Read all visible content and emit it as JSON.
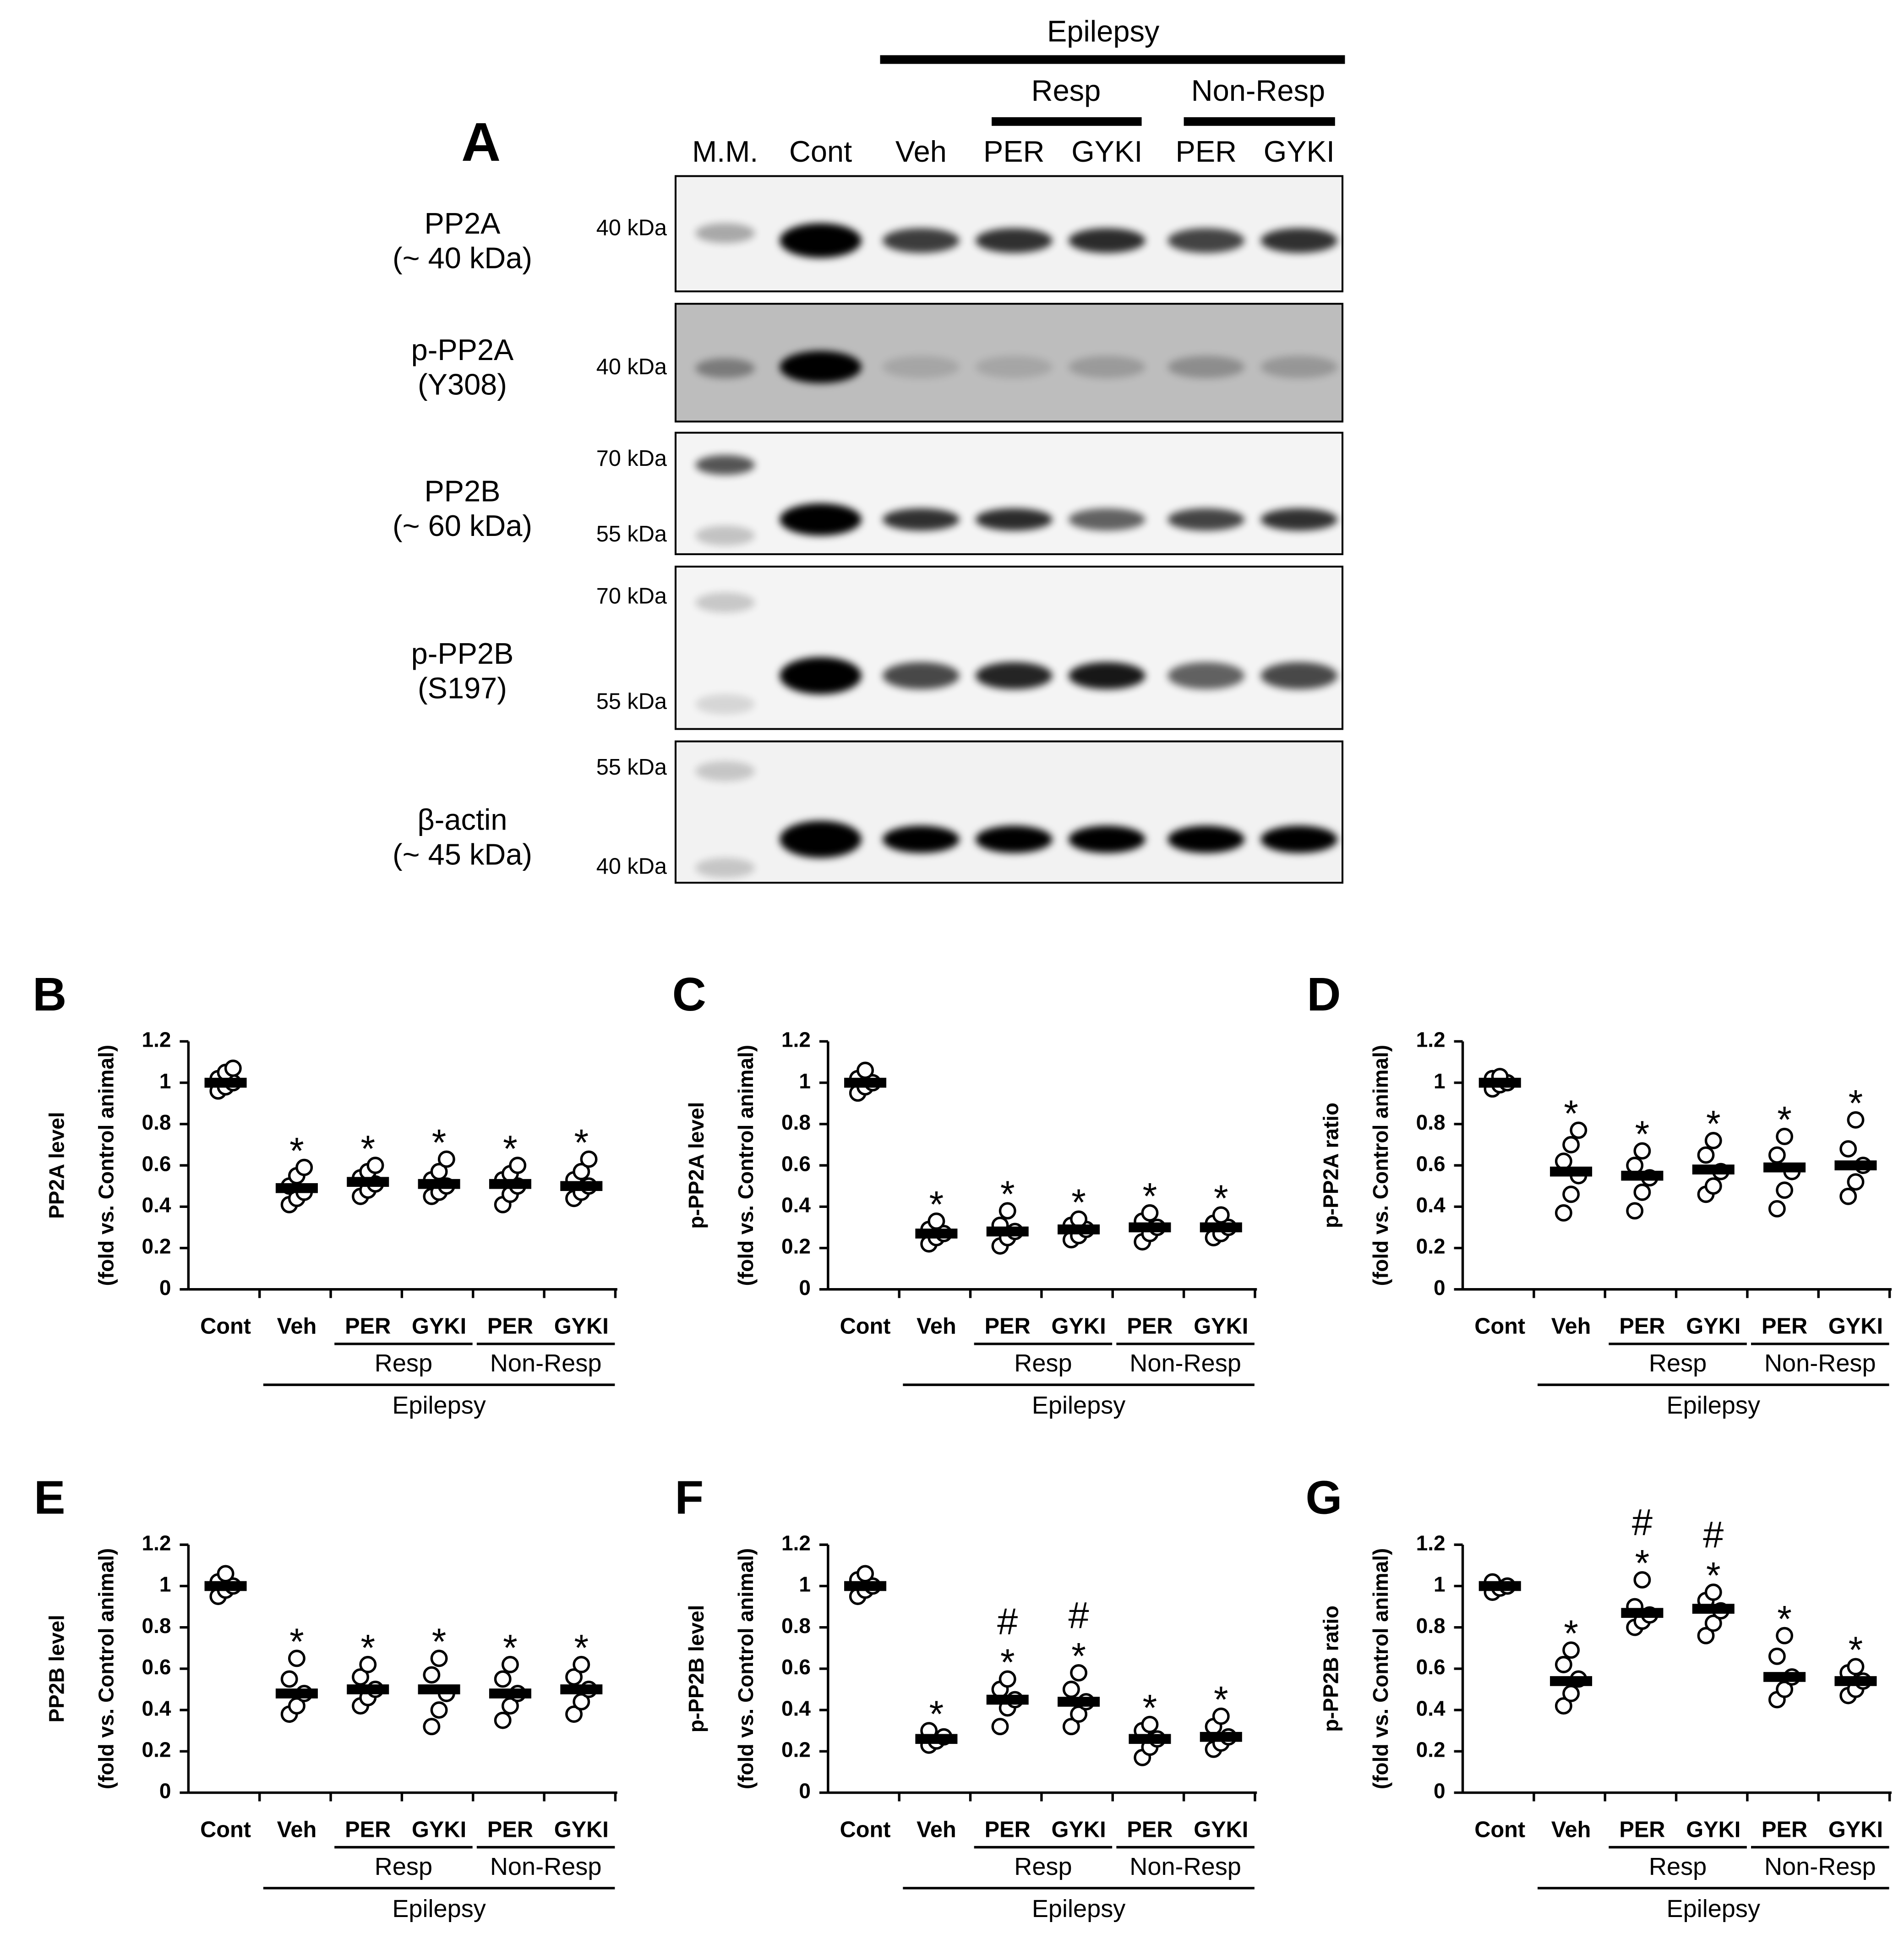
{
  "blot": {
    "panel": "A",
    "group": "Epilepsy",
    "subgroups": [
      "Resp",
      "Non-Resp"
    ],
    "lanes": [
      "M.M.",
      "Cont",
      "Veh",
      "PER",
      "GYKI",
      "PER",
      "GYKI"
    ],
    "rows": [
      {
        "label": [
          "PP2A",
          "(~ 40 kDa)"
        ],
        "markers": [
          "40 kDa"
        ]
      },
      {
        "label": [
          "p-PP2A",
          "(Y308)"
        ],
        "markers": [
          "40 kDa"
        ]
      },
      {
        "label": [
          "PP2B",
          "(~ 60 kDa)"
        ],
        "markers": [
          "70 kDa",
          "55 kDa"
        ]
      },
      {
        "label": [
          "p-PP2B",
          "(S197)"
        ],
        "markers": [
          "70 kDa",
          "55 kDa"
        ]
      },
      {
        "label": [
          "β-actin",
          "(~ 45 kDa)"
        ],
        "markers": [
          "55 kDa",
          "40 kDa"
        ]
      }
    ]
  },
  "chart_data": [
    {
      "type": "dot",
      "panel": "B",
      "ylabel": [
        "PP2A level",
        "(fold vs. Control animal)"
      ],
      "categories": [
        "Cont",
        "Veh",
        "PER",
        "GYKI",
        "PER",
        "GYKI"
      ],
      "subgroups": [
        "Resp",
        "Non-Resp"
      ],
      "group": "Epilepsy",
      "values": [
        1,
        0.49,
        0.52,
        0.51,
        0.51,
        0.5
      ],
      "points": [
        [
          0.96,
          0.98,
          1.0,
          1.02,
          1.05,
          1.07
        ],
        [
          0.41,
          0.44,
          0.47,
          0.5,
          0.55,
          0.59
        ],
        [
          0.45,
          0.48,
          0.51,
          0.54,
          0.57,
          0.6
        ],
        [
          0.45,
          0.47,
          0.5,
          0.53,
          0.57,
          0.63
        ],
        [
          0.41,
          0.46,
          0.5,
          0.53,
          0.56,
          0.6
        ],
        [
          0.44,
          0.47,
          0.5,
          0.53,
          0.57,
          0.63
        ]
      ],
      "annotations": [
        null,
        [
          "*"
        ],
        [
          "*"
        ],
        [
          "*"
        ],
        [
          "*"
        ],
        [
          "*"
        ]
      ],
      "ylim": [
        0,
        1.2
      ],
      "yticks": [
        0,
        0.2,
        0.4,
        0.6,
        0.8,
        1,
        1.2
      ]
    },
    {
      "type": "dot",
      "panel": "C",
      "ylabel": [
        "p-PP2A level",
        "(fold vs. Control animal)"
      ],
      "categories": [
        "Cont",
        "Veh",
        "PER",
        "GYKI",
        "PER",
        "GYKI"
      ],
      "subgroups": [
        "Resp",
        "Non-Resp"
      ],
      "group": "Epilepsy",
      "values": [
        1,
        0.27,
        0.28,
        0.29,
        0.3,
        0.3
      ],
      "points": [
        [
          0.95,
          0.98,
          1.0,
          1.02,
          1.06
        ],
        [
          0.22,
          0.25,
          0.27,
          0.29,
          0.33
        ],
        [
          0.21,
          0.25,
          0.28,
          0.31,
          0.38
        ],
        [
          0.24,
          0.26,
          0.29,
          0.31,
          0.34
        ],
        [
          0.23,
          0.27,
          0.3,
          0.33,
          0.37
        ],
        [
          0.25,
          0.27,
          0.3,
          0.32,
          0.36
        ]
      ],
      "annotations": [
        null,
        [
          "*"
        ],
        [
          "*"
        ],
        [
          "*"
        ],
        [
          "*"
        ],
        [
          "*"
        ]
      ],
      "ylim": [
        0,
        1.2
      ],
      "yticks": [
        0,
        0.2,
        0.4,
        0.6,
        0.8,
        1,
        1.2
      ]
    },
    {
      "type": "dot",
      "panel": "D",
      "ylabel": [
        "p-PP2A ratio",
        "(fold vs. Control animal)"
      ],
      "categories": [
        "Cont",
        "Veh",
        "PER",
        "GYKI",
        "PER",
        "GYKI"
      ],
      "subgroups": [
        "Resp",
        "Non-Resp"
      ],
      "group": "Epilepsy",
      "values": [
        1,
        0.57,
        0.55,
        0.58,
        0.59,
        0.6
      ],
      "points": [
        [
          0.97,
          0.99,
          1.0,
          1.02,
          1.03
        ],
        [
          0.37,
          0.46,
          0.55,
          0.62,
          0.7,
          0.77
        ],
        [
          0.38,
          0.47,
          0.54,
          0.6,
          0.67
        ],
        [
          0.46,
          0.5,
          0.57,
          0.65,
          0.72
        ],
        [
          0.39,
          0.48,
          0.57,
          0.65,
          0.74
        ],
        [
          0.45,
          0.52,
          0.6,
          0.68,
          0.82
        ]
      ],
      "annotations": [
        null,
        [
          "*"
        ],
        [
          "*"
        ],
        [
          "*"
        ],
        [
          "*"
        ],
        [
          "*"
        ]
      ],
      "ylim": [
        0,
        1.2
      ],
      "yticks": [
        0,
        0.2,
        0.4,
        0.6,
        0.8,
        1,
        1.2
      ]
    },
    {
      "type": "dot",
      "panel": "E",
      "ylabel": [
        "PP2B level",
        "(fold vs. Control animal)"
      ],
      "categories": [
        "Cont",
        "Veh",
        "PER",
        "GYKI",
        "PER",
        "GYKI"
      ],
      "subgroups": [
        "Resp",
        "Non-Resp"
      ],
      "group": "Epilepsy",
      "values": [
        1,
        0.48,
        0.5,
        0.5,
        0.48,
        0.5
      ],
      "points": [
        [
          0.95,
          0.98,
          1.0,
          1.02,
          1.06
        ],
        [
          0.38,
          0.42,
          0.48,
          0.55,
          0.65
        ],
        [
          0.42,
          0.46,
          0.5,
          0.56,
          0.62
        ],
        [
          0.32,
          0.4,
          0.48,
          0.57,
          0.65
        ],
        [
          0.35,
          0.42,
          0.48,
          0.55,
          0.62
        ],
        [
          0.38,
          0.44,
          0.5,
          0.56,
          0.62
        ]
      ],
      "annotations": [
        null,
        [
          "*"
        ],
        [
          "*"
        ],
        [
          "*"
        ],
        [
          "*"
        ],
        [
          "*"
        ]
      ],
      "ylim": [
        0,
        1.2
      ],
      "yticks": [
        0,
        0.2,
        0.4,
        0.6,
        0.8,
        1,
        1.2
      ]
    },
    {
      "type": "dot",
      "panel": "F",
      "ylabel": [
        "p-PP2B level",
        "(fold vs. Control animal)"
      ],
      "categories": [
        "Cont",
        "Veh",
        "PER",
        "GYKI",
        "PER",
        "GYKI"
      ],
      "subgroups": [
        "Resp",
        "Non-Resp"
      ],
      "group": "Epilepsy",
      "values": [
        1,
        0.26,
        0.45,
        0.44,
        0.26,
        0.27
      ],
      "points": [
        [
          0.95,
          0.98,
          1.0,
          1.03,
          1.06
        ],
        [
          0.23,
          0.25,
          0.27,
          0.3
        ],
        [
          0.32,
          0.41,
          0.45,
          0.5,
          0.55
        ],
        [
          0.32,
          0.38,
          0.44,
          0.5,
          0.58
        ],
        [
          0.17,
          0.22,
          0.26,
          0.3,
          0.33
        ],
        [
          0.21,
          0.24,
          0.27,
          0.32,
          0.37
        ]
      ],
      "annotations": [
        null,
        [
          "*"
        ],
        [
          "#",
          "*"
        ],
        [
          "#",
          "*"
        ],
        [
          "*"
        ],
        [
          "*"
        ]
      ],
      "ylim": [
        0,
        1.2
      ],
      "yticks": [
        0,
        0.2,
        0.4,
        0.6,
        0.8,
        1,
        1.2
      ]
    },
    {
      "type": "dot",
      "panel": "G",
      "ylabel": [
        "p-PP2B ratio",
        "(fold vs. Control animal)"
      ],
      "categories": [
        "Cont",
        "Veh",
        "PER",
        "GYKI",
        "PER",
        "GYKI"
      ],
      "subgroups": [
        "Resp",
        "Non-Resp"
      ],
      "group": "Epilepsy",
      "values": [
        1,
        0.54,
        0.87,
        0.89,
        0.56,
        0.54
      ],
      "points": [
        [
          0.97,
          0.99,
          1.0,
          1.02
        ],
        [
          0.42,
          0.48,
          0.55,
          0.62,
          0.69
        ],
        [
          0.8,
          0.83,
          0.86,
          0.9,
          1.03
        ],
        [
          0.76,
          0.82,
          0.88,
          0.93,
          0.97
        ],
        [
          0.45,
          0.5,
          0.56,
          0.66,
          0.76
        ],
        [
          0.47,
          0.5,
          0.54,
          0.58,
          0.61
        ]
      ],
      "annotations": [
        null,
        [
          "*"
        ],
        [
          "#",
          "*"
        ],
        [
          "#",
          "*"
        ],
        [
          "*"
        ],
        [
          "*"
        ]
      ],
      "ylim": [
        0,
        1.2
      ],
      "yticks": [
        0,
        0.2,
        0.4,
        0.6,
        0.8,
        1,
        1.2
      ]
    }
  ]
}
